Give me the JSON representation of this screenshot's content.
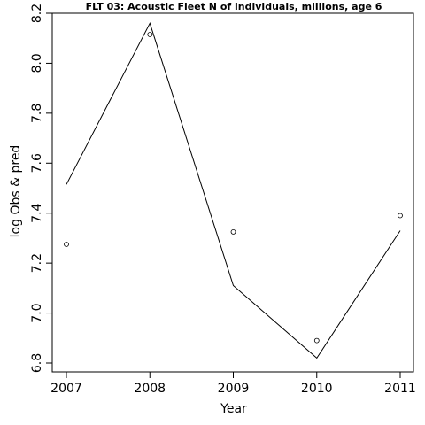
{
  "chart_data": {
    "type": "line",
    "title": "FLT 03: Acoustic Fleet  N of individuals, millions, age 6",
    "xlabel": "Year",
    "ylabel": "log Obs & pred",
    "xlim": [
      2007,
      2011
    ],
    "ylim": [
      6.8,
      8.2
    ],
    "x_ticks": [
      2007,
      2008,
      2009,
      2010,
      2011
    ],
    "x_tick_labels": [
      "2007",
      "2008",
      "2009",
      "2010",
      "2011"
    ],
    "y_ticks": [
      6.8,
      7.0,
      7.2,
      7.4,
      7.6,
      7.8,
      8.0,
      8.2
    ],
    "y_tick_labels": [
      "6.8",
      "7.0",
      "7.2",
      "7.4",
      "7.6",
      "7.8",
      "8.0",
      "8.2"
    ],
    "grid": false,
    "series": [
      {
        "kind": "line",
        "x": [
          2007,
          2008,
          2009,
          2010,
          2011
        ],
        "values": [
          7.515,
          8.16,
          7.11,
          6.82,
          7.33
        ]
      },
      {
        "kind": "points",
        "x": [
          2007,
          2008,
          2009,
          2010,
          2011
        ],
        "values": [
          7.275,
          8.115,
          7.325,
          6.89,
          7.39
        ]
      }
    ]
  }
}
